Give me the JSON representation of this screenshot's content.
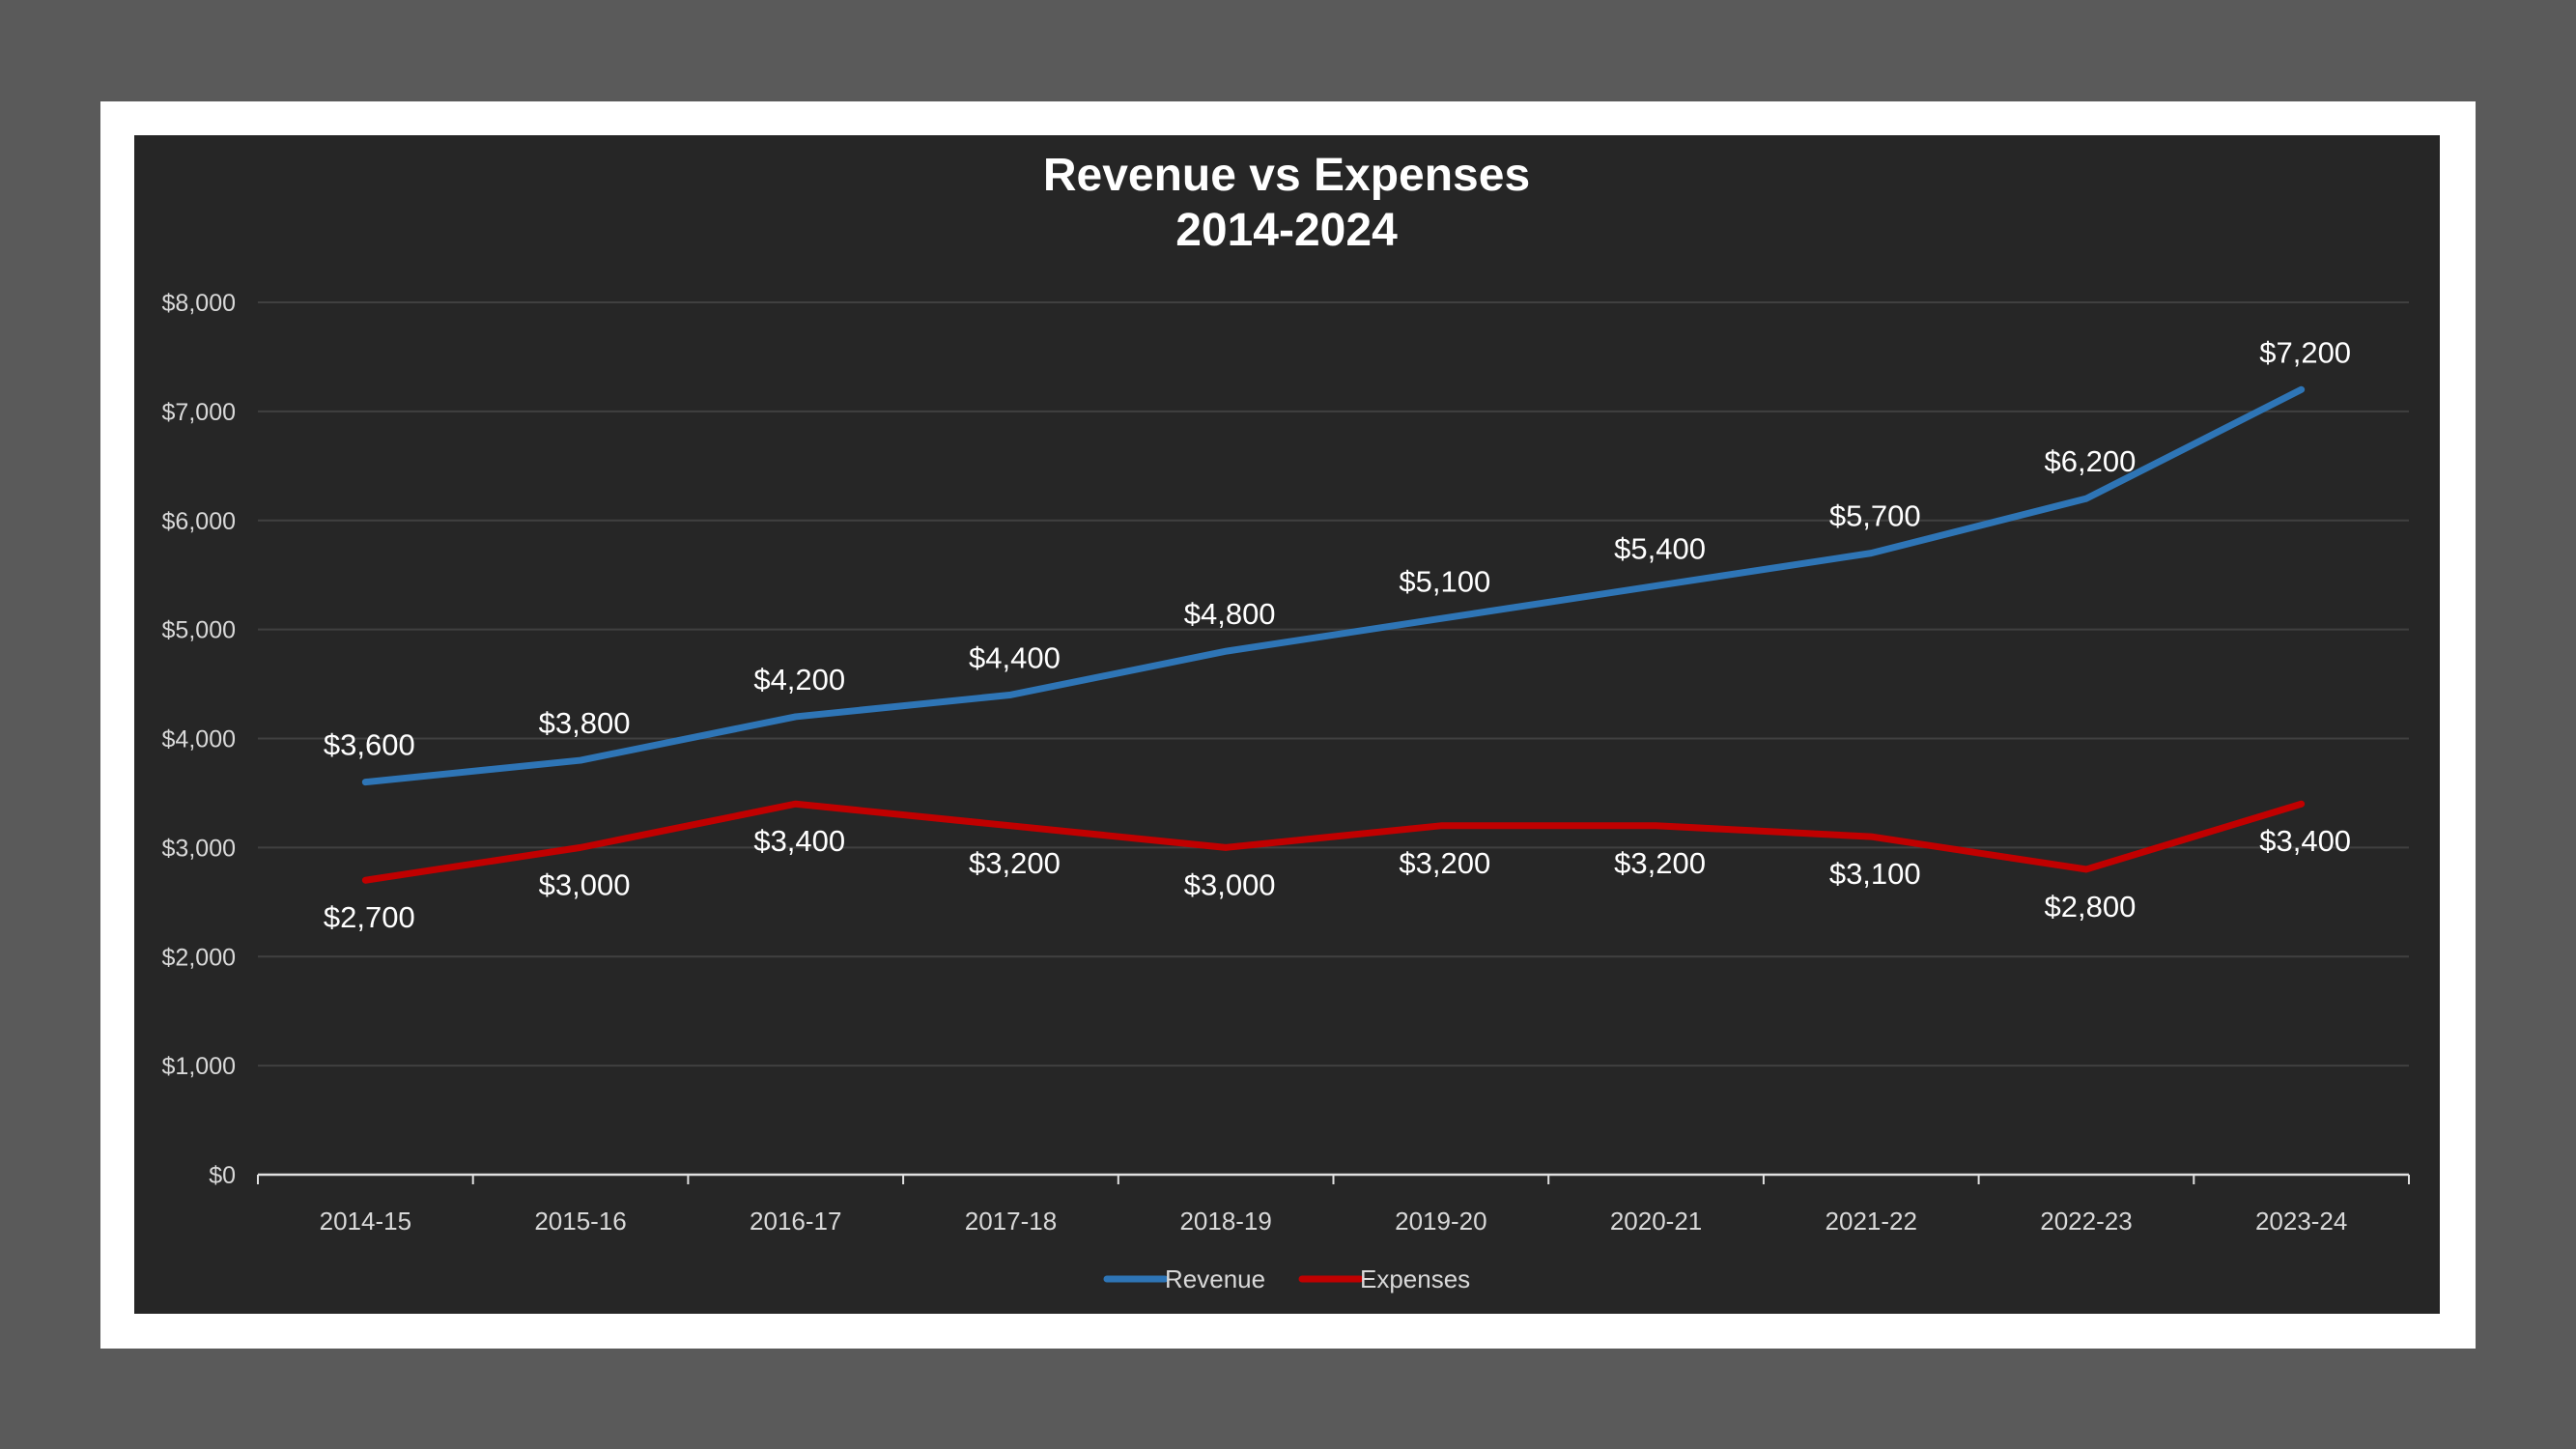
{
  "chart_data": {
    "type": "line",
    "title": "Revenue vs Expenses",
    "subtitle": "2014-2024",
    "categories": [
      "2014-15",
      "2015-16",
      "2016-17",
      "2017-18",
      "2018-19",
      "2019-20",
      "2020-21",
      "2021-22",
      "2022-23",
      "2023-24"
    ],
    "series": [
      {
        "name": "Revenue",
        "color": "#2e75b6",
        "values": [
          3600,
          3800,
          4200,
          4400,
          4800,
          5100,
          5400,
          5700,
          6200,
          7200
        ],
        "labels": [
          "$3,600",
          "$3,800",
          "$4,200",
          "$4,400",
          "$4,800",
          "$5,100",
          "$5,400",
          "$5,700",
          "$6,200",
          "$7,200"
        ],
        "label_position": "above"
      },
      {
        "name": "Expenses",
        "color": "#c00000",
        "values": [
          2700,
          3000,
          3400,
          3200,
          3000,
          3200,
          3200,
          3100,
          2800,
          3400
        ],
        "labels": [
          "$2,700",
          "$3,000",
          "$3,400",
          "$3,200",
          "$3,000",
          "$3,200",
          "$3,200",
          "$3,100",
          "$2,800",
          "$3,400"
        ],
        "label_position": "below"
      }
    ],
    "ylim": [
      0,
      8000
    ],
    "yticks": [
      0,
      1000,
      2000,
      3000,
      4000,
      5000,
      6000,
      7000,
      8000
    ],
    "ytick_labels": [
      "$0",
      "$1,000",
      "$2,000",
      "$3,000",
      "$4,000",
      "$5,000",
      "$6,000",
      "$7,000",
      "$8,000"
    ],
    "xlabel": "",
    "ylabel": "",
    "grid": true,
    "legend": "bottom",
    "background": "#262626",
    "gridline_color": "#404040"
  }
}
